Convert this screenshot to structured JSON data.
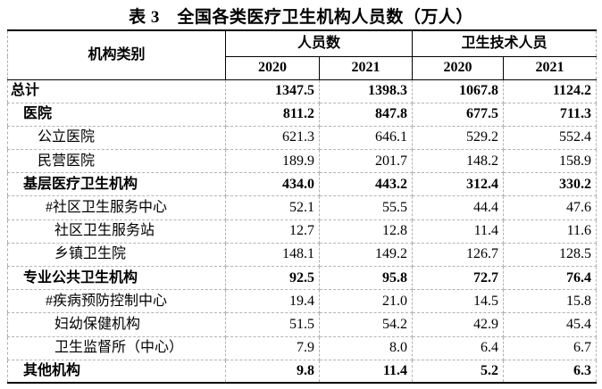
{
  "title": "表 3　全国各类医疗卫生机构人员数（万人）",
  "colors": {
    "text": "#000000",
    "solid_border": "#000000",
    "dashed_border": "#b3b3b3",
    "background": "#ffffff"
  },
  "table": {
    "category_header": "机构类别",
    "groups": [
      {
        "label": "人员数",
        "years": [
          "2020",
          "2021"
        ]
      },
      {
        "label": "卫生技术人员",
        "years": [
          "2020",
          "2021"
        ]
      }
    ],
    "rows": [
      {
        "label": "总计",
        "indent": 0,
        "bold": true,
        "values": [
          "1347.5",
          "1398.3",
          "1067.8",
          "1124.2"
        ]
      },
      {
        "label": "医院",
        "indent": 1,
        "bold": true,
        "values": [
          "811.2",
          "847.8",
          "677.5",
          "711.3"
        ]
      },
      {
        "label": "公立医院",
        "indent": 2,
        "bold": false,
        "values": [
          "621.3",
          "646.1",
          "529.2",
          "552.4"
        ]
      },
      {
        "label": "民营医院",
        "indent": 2,
        "bold": false,
        "values": [
          "189.9",
          "201.7",
          "148.2",
          "158.9"
        ]
      },
      {
        "label": "基层医疗卫生机构",
        "indent": 1,
        "bold": true,
        "values": [
          "434.0",
          "443.2",
          "312.4",
          "330.2"
        ]
      },
      {
        "label": "#社区卫生服务中心",
        "indent": 3,
        "bold": false,
        "values": [
          "52.1",
          "55.5",
          "44.4",
          "47.6"
        ]
      },
      {
        "label": "社区卫生服务站",
        "indent": 4,
        "bold": false,
        "values": [
          "12.7",
          "12.8",
          "11.4",
          "11.6"
        ]
      },
      {
        "label": "乡镇卫生院",
        "indent": 4,
        "bold": false,
        "values": [
          "148.1",
          "149.2",
          "126.7",
          "128.5"
        ]
      },
      {
        "label": "专业公共卫生机构",
        "indent": 1,
        "bold": true,
        "values": [
          "92.5",
          "95.8",
          "72.7",
          "76.4"
        ]
      },
      {
        "label": "#疾病预防控制中心",
        "indent": 3,
        "bold": false,
        "values": [
          "19.4",
          "21.0",
          "14.5",
          "15.8"
        ]
      },
      {
        "label": "妇幼保健机构",
        "indent": 4,
        "bold": false,
        "values": [
          "51.5",
          "54.2",
          "42.9",
          "45.4"
        ]
      },
      {
        "label": "卫生监督所（中心）",
        "indent": 4,
        "bold": false,
        "values": [
          "7.9",
          "8.0",
          "6.4",
          "6.7"
        ]
      },
      {
        "label": "其他机构",
        "indent": 1,
        "bold": true,
        "values": [
          "9.8",
          "11.4",
          "5.2",
          "6.3"
        ]
      }
    ]
  }
}
